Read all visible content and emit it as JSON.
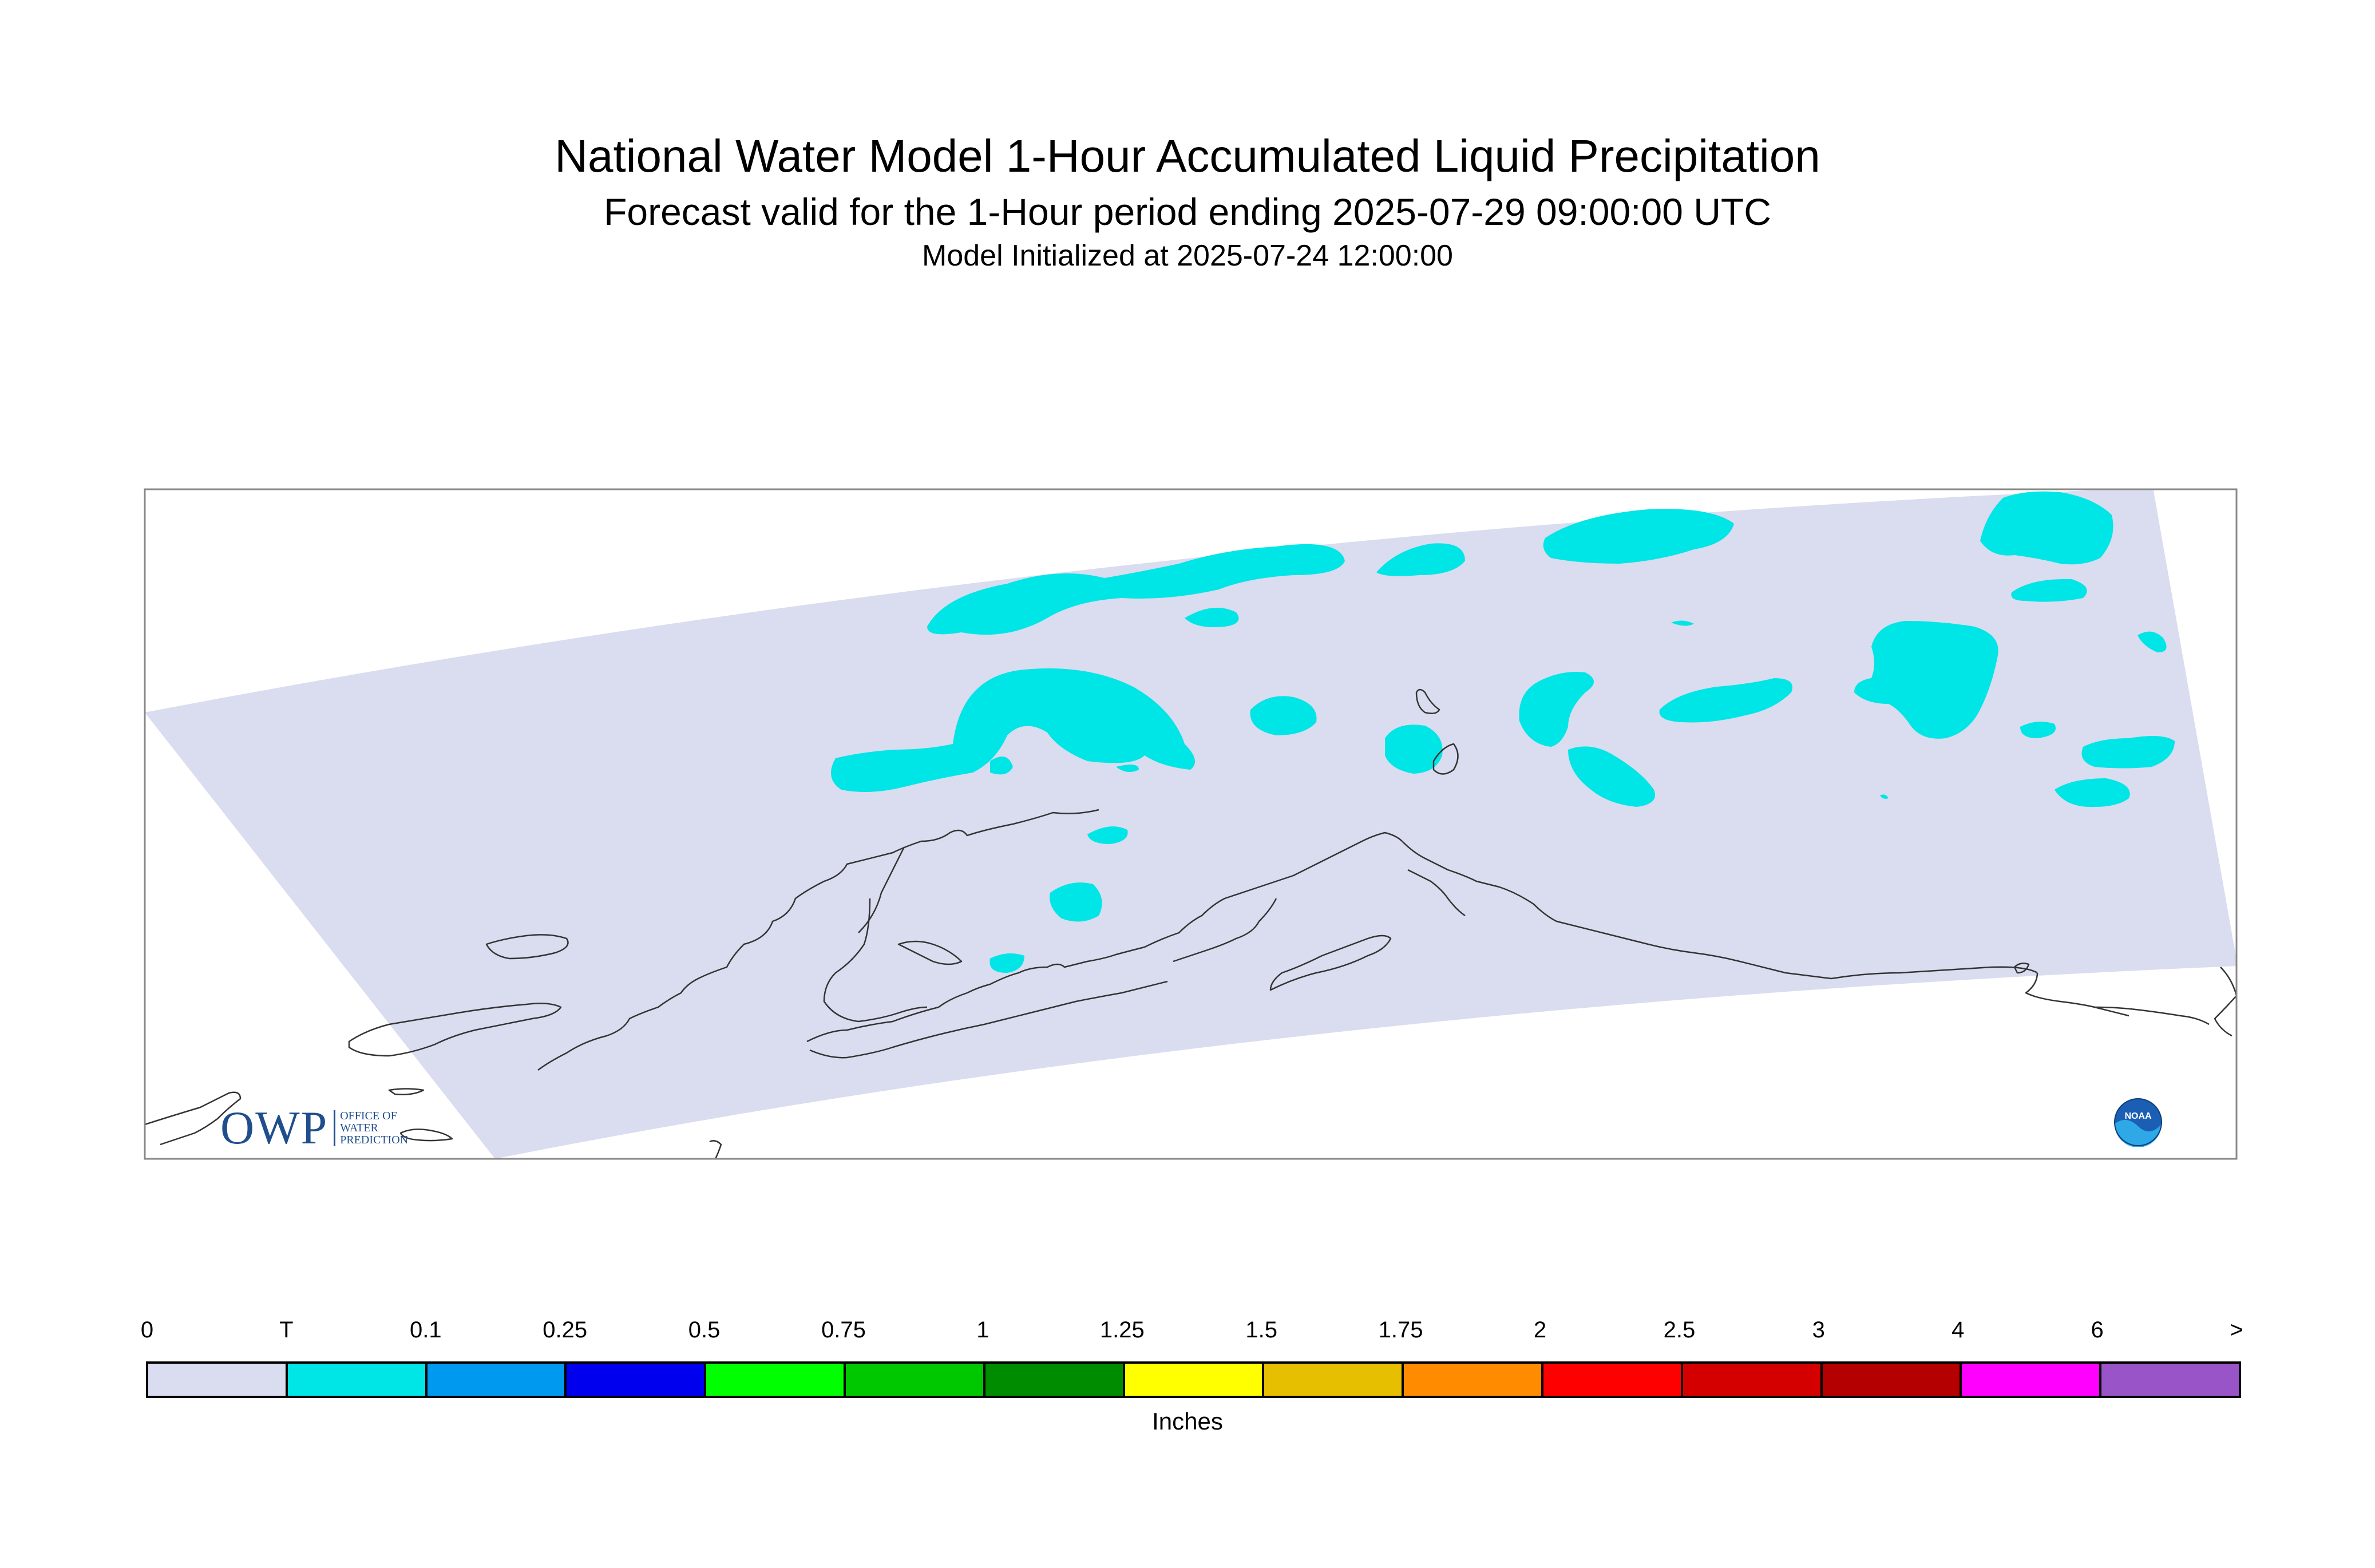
{
  "header": {
    "title": "National Water Model 1-Hour Accumulated Liquid Precipitation",
    "subtitle": "Forecast valid for the 1-Hour period ending 2025-07-29 09:00:00 UTC",
    "init": "Model Initialized at 2025-07-24 12:00:00"
  },
  "map": {
    "region": "Alaska",
    "domain_fill_color": "#dadcef",
    "precip_fill_color": "#00e5e5",
    "coastline_color": "#333333",
    "frame_color": "#888888"
  },
  "legend": {
    "labels": [
      "0",
      "T",
      "0.1",
      "0.25",
      "0.5",
      "0.75",
      "1",
      "1.25",
      "1.5",
      "1.75",
      "2",
      "2.5",
      "3",
      "4",
      "6",
      ">"
    ],
    "colors": [
      "#dadcef",
      "#00e5e5",
      "#0099f0",
      "#0000ee",
      "#00ff00",
      "#00c800",
      "#008c00",
      "#ffff00",
      "#e5bf00",
      "#ff8c00",
      "#ff0000",
      "#d40000",
      "#b40000",
      "#ff00ff",
      "#9955c8"
    ],
    "units": "Inches"
  },
  "logos": {
    "owp_text": "OWP",
    "owp_sub": [
      "OFFICE OF",
      "WATER",
      "PREDICTION"
    ],
    "noaa": "NOAA"
  }
}
